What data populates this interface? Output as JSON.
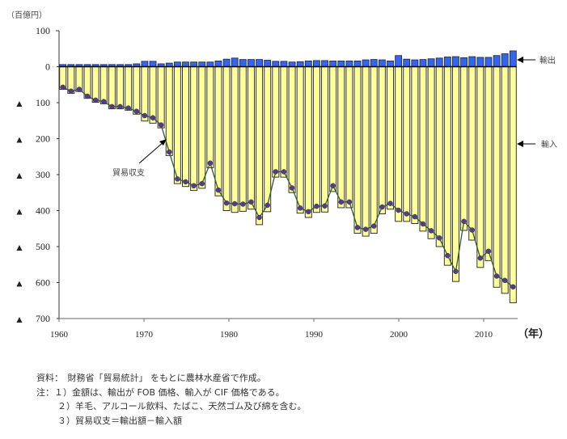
{
  "chart_data": {
    "type": "bar",
    "unit_label": "（百億円）",
    "xlabel": "（年）",
    "ylabel": "",
    "ylim": [
      -700,
      100
    ],
    "xlim": [
      1960,
      2014
    ],
    "y_ticks": [
      {
        "value": 100,
        "label": "100",
        "neg": ""
      },
      {
        "value": 0,
        "label": "0",
        "neg": ""
      },
      {
        "value": -100,
        "label": "100",
        "neg": "▲"
      },
      {
        "value": -200,
        "label": "200",
        "neg": "▲"
      },
      {
        "value": -300,
        "label": "300",
        "neg": "▲"
      },
      {
        "value": -400,
        "label": "400",
        "neg": "▲"
      },
      {
        "value": -500,
        "label": "500",
        "neg": "▲"
      },
      {
        "value": -600,
        "label": "600",
        "neg": "▲"
      },
      {
        "value": -700,
        "label": "700",
        "neg": "▲"
      }
    ],
    "x_ticks": [
      {
        "value": 1960,
        "label": "1960"
      },
      {
        "value": 1970,
        "label": "1970"
      },
      {
        "value": 1980,
        "label": "1980"
      },
      {
        "value": 1990,
        "label": "1990"
      },
      {
        "value": 2000,
        "label": "2000"
      },
      {
        "value": 2010,
        "label": "2010"
      }
    ],
    "series": [
      {
        "name": "輸出",
        "type": "bar",
        "color": "#3366ee",
        "values": [
          6,
          6,
          6,
          6,
          6,
          6,
          6,
          6,
          6,
          8,
          15,
          15,
          8,
          10,
          13,
          13,
          13,
          13,
          13,
          16,
          21,
          24,
          20,
          20,
          20,
          18,
          15,
          15,
          13,
          14,
          16,
          17,
          17,
          16,
          16,
          16,
          16,
          19,
          20,
          19,
          16,
          31,
          21,
          19,
          20,
          22,
          24,
          27,
          28,
          25,
          28,
          26,
          26,
          31,
          36,
          44
        ]
      },
      {
        "name": "輸入",
        "type": "bar",
        "color": "#ffff99",
        "values": [
          -63,
          -74,
          -69,
          -88,
          -99,
          -103,
          -117,
          -117,
          -121,
          -132,
          -151,
          -157,
          -170,
          -247,
          -325,
          -333,
          -344,
          -338,
          -281,
          -359,
          -400,
          -405,
          -402,
          -396,
          -439,
          -403,
          -307,
          -307,
          -350,
          -407,
          -419,
          -405,
          -404,
          -347,
          -392,
          -392,
          -463,
          -471,
          -463,
          -409,
          -396,
          -430,
          -430,
          -436,
          -457,
          -478,
          -500,
          -552,
          -597,
          -455,
          -482,
          -558,
          -539,
          -613,
          -630,
          -656
        ]
      },
      {
        "name": "貿易収支",
        "type": "line",
        "color": "#2e5e2e",
        "marker_color": "#553c8b",
        "values": [
          -57,
          -68,
          -63,
          -82,
          -93,
          -97,
          -111,
          -111,
          -115,
          -124,
          -136,
          -142,
          -162,
          -237,
          -312,
          -320,
          -331,
          -325,
          -268,
          -343,
          -379,
          -381,
          -382,
          -376,
          -419,
          -385,
          -292,
          -292,
          -337,
          -393,
          -403,
          -388,
          -387,
          -331,
          -376,
          -376,
          -447,
          -452,
          -443,
          -390,
          -380,
          -399,
          -409,
          -417,
          -437,
          -456,
          -476,
          -525,
          -569,
          -430,
          -454,
          -532,
          -513,
          -582,
          -594,
          -612
        ]
      }
    ],
    "annotations": {
      "export": "輸出",
      "import": "輸入",
      "balance": "貿易収支"
    }
  },
  "notes": {
    "source": "資料：　財務省「貿易統計」 をもとに農林水産省で作成。",
    "note1": "注：１）金額は、輸出が FOB 価格、輸入が CIF 価格である。",
    "note2": "２）羊毛、アルコール飲料、たばこ、天然ゴム及び綿を含む。",
    "note3": "３）貿易収支＝輸出額－輸入額"
  }
}
